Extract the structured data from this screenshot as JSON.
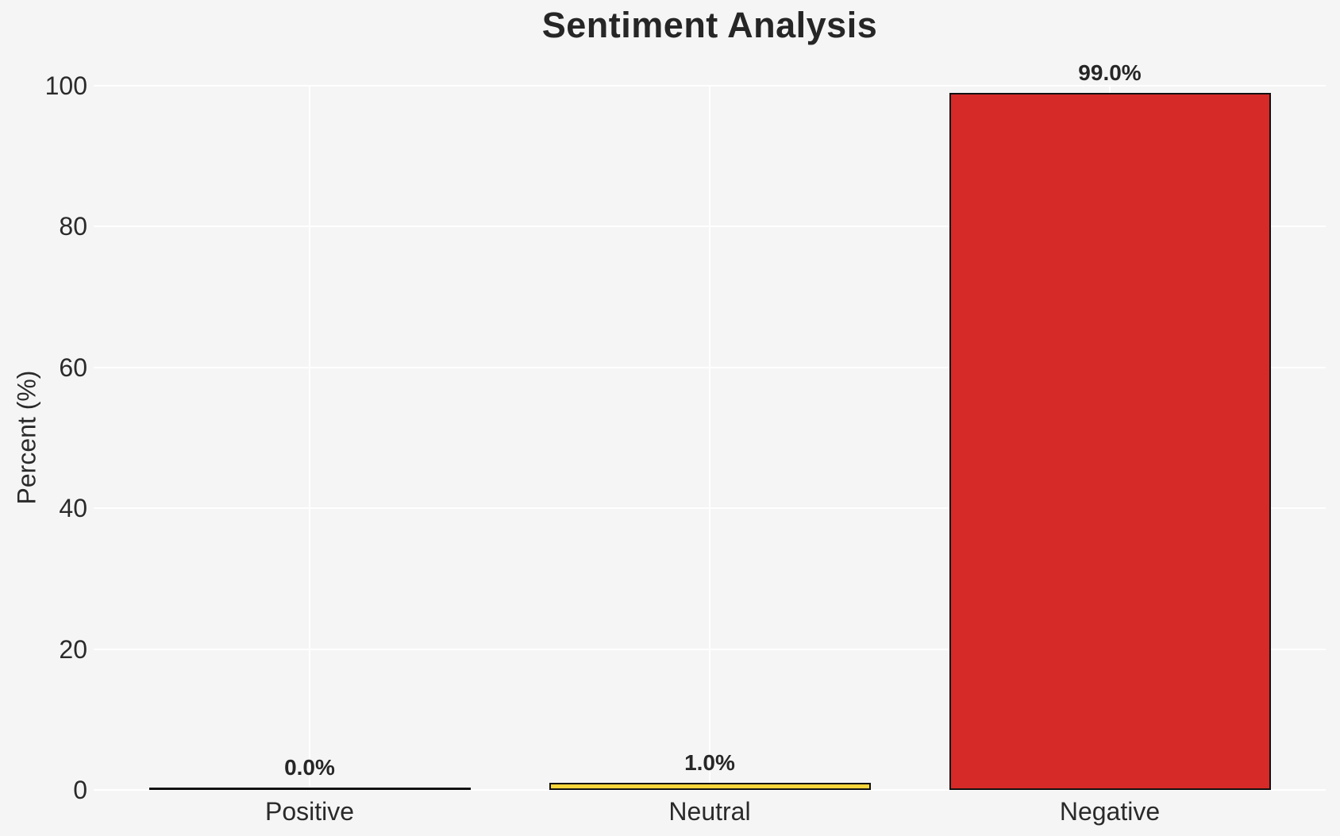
{
  "chart_data": {
    "type": "bar",
    "title": "Sentiment Analysis",
    "categories": [
      "Positive",
      "Neutral",
      "Negative"
    ],
    "values": [
      0.0,
      1.0,
      99.0
    ],
    "value_labels": [
      "0.0%",
      "1.0%",
      "99.0%"
    ],
    "xlabel": "",
    "ylabel": "Percent (%)",
    "ylim": [
      0,
      100
    ],
    "yticks": [
      0,
      20,
      40,
      60,
      80,
      100
    ],
    "ytick_labels": [
      "0",
      "20",
      "40",
      "60",
      "80",
      "100"
    ],
    "grid": true,
    "legend": false,
    "colors": {
      "background": "#f5f5f6",
      "gridline": "#ffffff",
      "bar_edge": "#111111",
      "bar_fills": [
        null,
        "#f6d43a",
        "#d62a28"
      ],
      "text": "#262626"
    }
  }
}
